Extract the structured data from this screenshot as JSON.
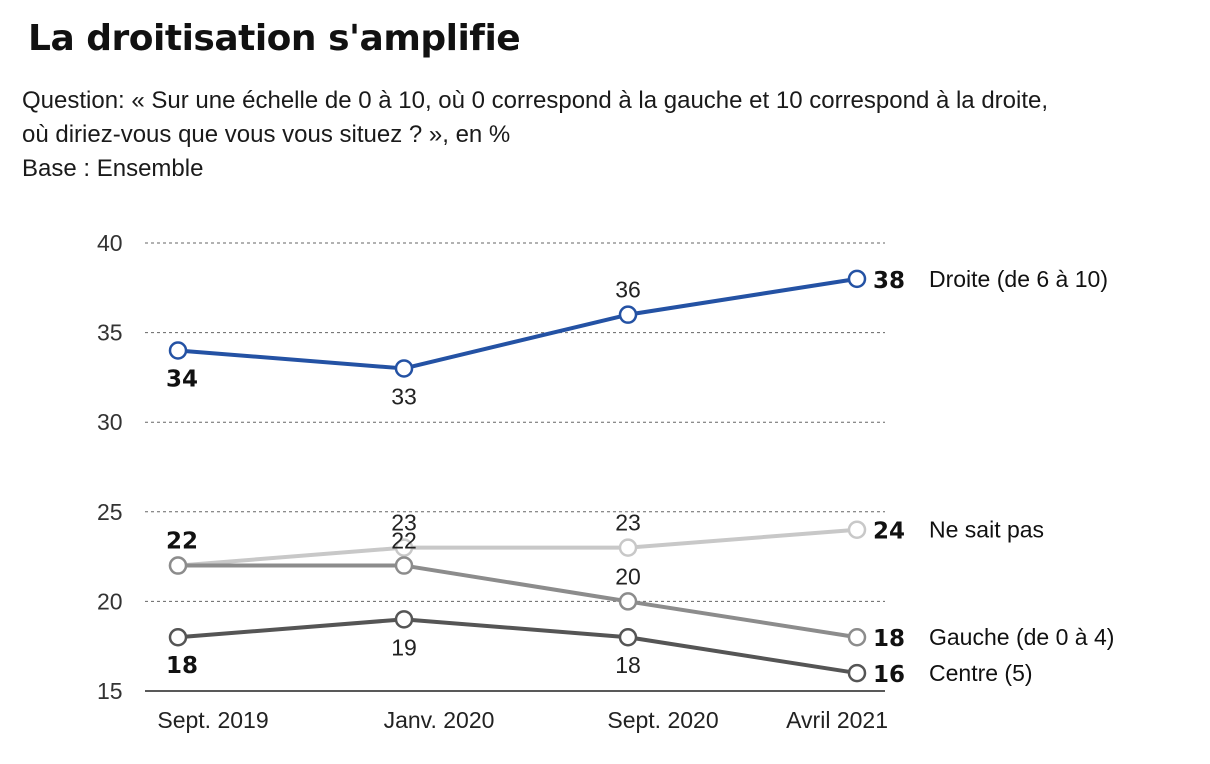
{
  "header": {
    "title": "La droitisation s'amplifie",
    "subtitle_line1": "Question: « Sur une échelle de 0 à 10, où 0 correspond à la gauche et 10 correspond à la droite,",
    "subtitle_line2": "où diriez-vous que vous vous situez ? », en %",
    "subtitle_line3": "Base : Ensemble"
  },
  "chart_data": {
    "type": "line",
    "title": "La droitisation s'amplifie",
    "xlabel": "",
    "ylabel": "",
    "categories": [
      "Sept. 2019",
      "Janv. 2020",
      "Sept. 2020",
      "Avril 2021"
    ],
    "ylim": [
      15,
      40
    ],
    "yticks": [
      15,
      20,
      25,
      30,
      35,
      40
    ],
    "grid": true,
    "legend_placement": "right, inline at line ends",
    "series": [
      {
        "name": "Droite (de 6 à 10)",
        "values": [
          34,
          33,
          36,
          38
        ],
        "color": "#2452a4",
        "label_positions": [
          "below",
          "below",
          "above",
          "right"
        ]
      },
      {
        "name": "Ne sait pas",
        "values": [
          22,
          23,
          23,
          24
        ],
        "color": "#c8c8c8",
        "label_positions": [
          "none",
          "above",
          "above",
          "right"
        ]
      },
      {
        "name": "Gauche (de 0 à 4)",
        "values": [
          22,
          22,
          20,
          18
        ],
        "color": "#8c8c8c",
        "label_positions": [
          "above",
          "above",
          "above",
          "right"
        ]
      },
      {
        "name": "Centre (5)",
        "values": [
          18,
          19,
          18,
          16
        ],
        "color": "#555555",
        "label_positions": [
          "below",
          "below",
          "below",
          "right"
        ]
      }
    ]
  }
}
